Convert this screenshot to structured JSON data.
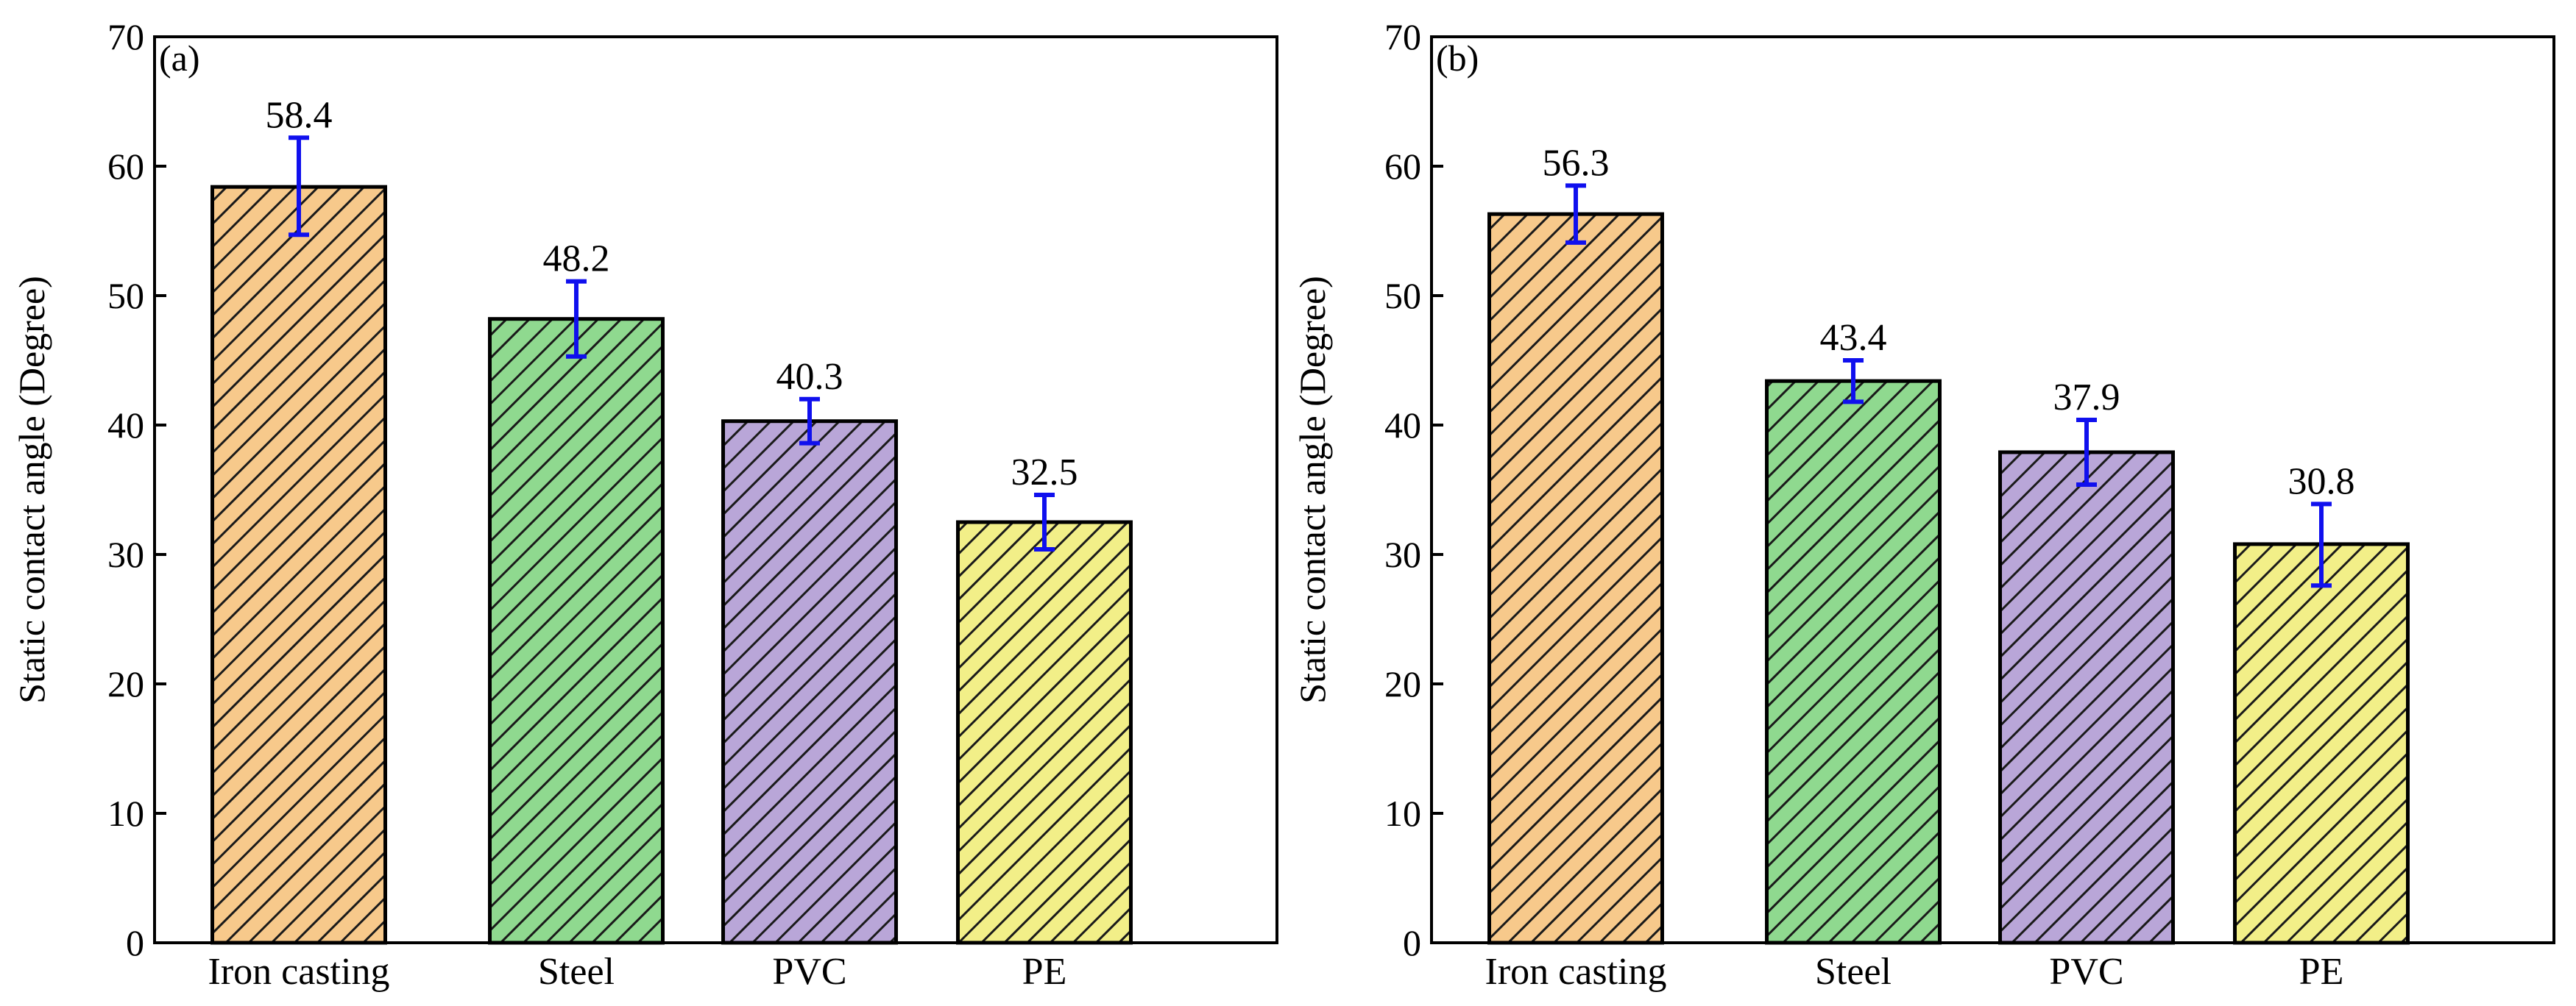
{
  "chart_data": [
    {
      "panel_label": "(a)",
      "type": "bar",
      "categories": [
        "Iron casting",
        "Steel",
        "PVC",
        "PE"
      ],
      "values": [
        58.4,
        48.2,
        40.3,
        32.5
      ],
      "value_labels": [
        "58.4",
        "48.2",
        "40.3",
        "32.5"
      ],
      "error_bars": [
        {
          "low": 54.7,
          "high": 62.2
        },
        {
          "low": 45.3,
          "high": 51.1
        },
        {
          "low": 38.6,
          "high": 42.0
        },
        {
          "low": 30.4,
          "high": 34.6
        }
      ],
      "ylabel": "Static contact angle (Degree)",
      "xlabel": "",
      "ylim": [
        0,
        70
      ],
      "yticks": [
        0,
        10,
        20,
        30,
        40,
        50,
        60,
        70
      ],
      "ytick_labels": [
        "0",
        "10",
        "20",
        "30",
        "40",
        "50",
        "60",
        "70"
      ]
    },
    {
      "panel_label": "(b)",
      "type": "bar",
      "categories": [
        "Iron casting",
        "Steel",
        "PVC",
        "PE"
      ],
      "values": [
        56.3,
        43.4,
        37.9,
        30.8
      ],
      "value_labels": [
        "56.3",
        "43.4",
        "37.9",
        "30.8"
      ],
      "error_bars": [
        {
          "low": 54.1,
          "high": 58.5
        },
        {
          "low": 41.8,
          "high": 45.0
        },
        {
          "low": 35.4,
          "high": 40.4
        },
        {
          "low": 27.6,
          "high": 33.9
        }
      ],
      "ylabel": "Static contact angle (Degree)",
      "xlabel": "",
      "ylim": [
        0,
        70
      ],
      "yticks": [
        0,
        10,
        20,
        30,
        40,
        50,
        60,
        70
      ],
      "ytick_labels": [
        "0",
        "10",
        "20",
        "30",
        "40",
        "50",
        "60",
        "70"
      ]
    }
  ],
  "colors": {
    "bars": [
      "#f7c98b",
      "#8fd98f",
      "#b9a6d8",
      "#f2ef88"
    ],
    "hatch": "#1a1a1a",
    "error_bar": "#1010ee",
    "axis": "#000000"
  }
}
